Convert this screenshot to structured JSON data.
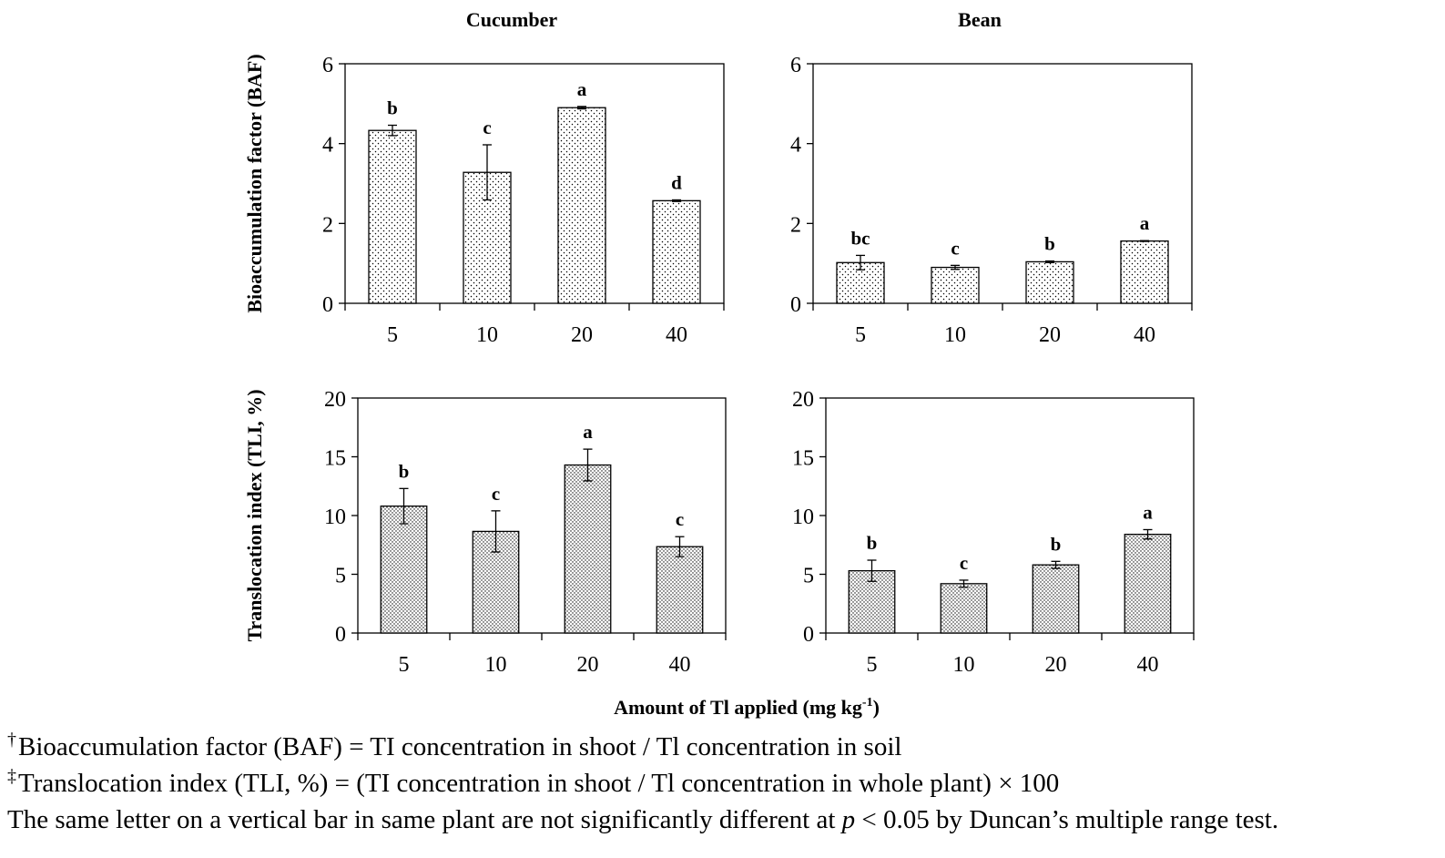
{
  "chart_data": [
    {
      "type": "bar",
      "title": "Cucumber",
      "ylabel": "Bioaccumulation factor (BAF)",
      "xlabel": "",
      "categories": [
        "5",
        "10",
        "20",
        "40"
      ],
      "values": [
        4.33,
        3.28,
        4.9,
        2.57
      ],
      "errors": [
        0.13,
        0.69,
        0.03,
        0.02
      ],
      "letters": [
        "b",
        "c",
        "a",
        "d"
      ],
      "ylim": [
        0,
        6
      ],
      "yticks": [
        0,
        2,
        4,
        6
      ],
      "pattern": "dots-sparse",
      "color": "#000000"
    },
    {
      "type": "bar",
      "title": "Bean",
      "ylabel": "",
      "xlabel": "",
      "categories": [
        "5",
        "10",
        "20",
        "40"
      ],
      "values": [
        1.02,
        0.9,
        1.04,
        1.56
      ],
      "errors": [
        0.18,
        0.05,
        0.02,
        0.01
      ],
      "letters": [
        "bc",
        "c",
        "b",
        "a"
      ],
      "ylim": [
        0,
        6
      ],
      "yticks": [
        0,
        2,
        4,
        6
      ],
      "pattern": "dots-sparse",
      "color": "#000000"
    },
    {
      "type": "bar",
      "title": "",
      "ylabel": "Translocation index (TLI, %)",
      "xlabel": "",
      "categories": [
        "5",
        "10",
        "20",
        "40"
      ],
      "values": [
        10.8,
        8.65,
        14.3,
        7.35
      ],
      "errors": [
        1.5,
        1.75,
        1.35,
        0.85
      ],
      "letters": [
        "b",
        "c",
        "a",
        "c"
      ],
      "ylim": [
        0,
        20
      ],
      "yticks": [
        0,
        5,
        10,
        15,
        20
      ],
      "pattern": "dots-dense",
      "color": "#000000"
    },
    {
      "type": "bar",
      "title": "",
      "ylabel": "",
      "xlabel": "",
      "categories": [
        "5",
        "10",
        "20",
        "40"
      ],
      "values": [
        5.3,
        4.2,
        5.8,
        8.4
      ],
      "errors": [
        0.9,
        0.3,
        0.3,
        0.4
      ],
      "letters": [
        "b",
        "c",
        "b",
        "a"
      ],
      "ylim": [
        0,
        20
      ],
      "yticks": [
        0,
        5,
        10,
        15,
        20
      ],
      "pattern": "dots-dense",
      "color": "#000000"
    }
  ],
  "shared_xlabel": {
    "text": "Amount of Tl applied (mg kg",
    "superscript": "-1",
    "suffix": ")"
  },
  "footnotes": [
    {
      "mark": "†",
      "text": "Bioaccumulation factor (BAF) = TI concentration in shoot / Tl concentration in soil"
    },
    {
      "mark": "‡",
      "text": "Translocation index (TLI, %) = (TI concentration in shoot / Tl concentration in whole plant) × 100"
    },
    {
      "before": "The same letter on a vertical bar in same plant are not significantly different at ",
      "italic": "p",
      "after": " < 0.05 by Duncan’s multiple range test."
    }
  ]
}
